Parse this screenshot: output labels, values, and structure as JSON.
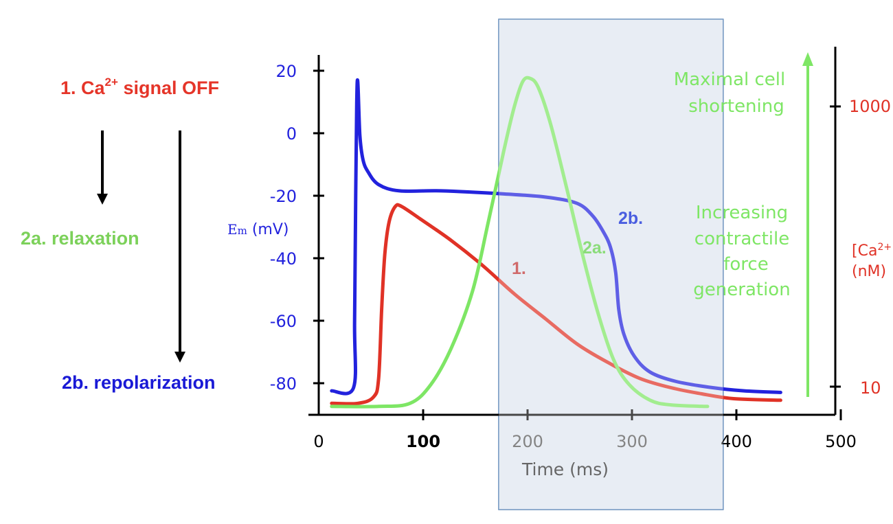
{
  "left_panel": {
    "ca_signal_prefix": "1. Ca",
    "ca_signal_sup": "2+",
    "ca_signal_suffix": " signal OFF",
    "relaxation": "2a. relaxation",
    "repolarization": "2b. repolarization"
  },
  "colors": {
    "membrane": "#2222dd",
    "calcium": "#e03226",
    "contraction": "#7ee665",
    "highlight_fill": "#a7b9d4",
    "highlight_stroke": "#5580b4",
    "axis": "#000000"
  },
  "chart_data": {
    "type": "line",
    "xlabel": "Time (ms)",
    "x_ticks": [
      "0",
      "100",
      "200",
      "300",
      "400",
      "500"
    ],
    "xlim": [
      0,
      500
    ],
    "left_axis": {
      "label_main": "E",
      "label_sub": "m",
      "label_units": " (mV)",
      "ticks": [
        "20",
        "0",
        "-20",
        "-40",
        "-60",
        "-80"
      ],
      "ylim": [
        -88,
        25
      ]
    },
    "right_axis": {
      "label_line1": "[Ca",
      "label_sup": "2+",
      "label_line1_end": "]",
      "label_line2": "(nM)",
      "ticks": [
        "1000",
        "10"
      ]
    },
    "highlight_window_ms": [
      175,
      390
    ],
    "series": [
      {
        "name": "membrane potential",
        "label": "2b.",
        "points_ms_mV": [
          [
            15,
            -82
          ],
          [
            36,
            -81
          ],
          [
            37,
            -60
          ],
          [
            38,
            -20
          ],
          [
            39,
            10
          ],
          [
            40,
            17
          ],
          [
            42,
            0
          ],
          [
            45,
            -8
          ],
          [
            50,
            -12
          ],
          [
            60,
            -16
          ],
          [
            80,
            -18
          ],
          [
            120,
            -18
          ],
          [
            180,
            -19
          ],
          [
            220,
            -20
          ],
          [
            250,
            -22
          ],
          [
            265,
            -26
          ],
          [
            275,
            -31
          ],
          [
            282,
            -36
          ],
          [
            287,
            -44
          ],
          [
            290,
            -56
          ],
          [
            295,
            -64
          ],
          [
            305,
            -71
          ],
          [
            320,
            -76
          ],
          [
            345,
            -79
          ],
          [
            380,
            -81
          ],
          [
            410,
            -82
          ],
          [
            445,
            -82.5
          ]
        ]
      },
      {
        "name": "calcium transient",
        "label": "1.",
        "points_ms_mV": [
          [
            15,
            -86
          ],
          [
            40,
            -86
          ],
          [
            55,
            -84
          ],
          [
            60,
            -78
          ],
          [
            63,
            -55
          ],
          [
            66,
            -38
          ],
          [
            70,
            -28
          ],
          [
            76,
            -23
          ],
          [
            82,
            -23
          ],
          [
            100,
            -27
          ],
          [
            130,
            -34
          ],
          [
            160,
            -42
          ],
          [
            190,
            -51
          ],
          [
            220,
            -59
          ],
          [
            250,
            -67
          ],
          [
            280,
            -73
          ],
          [
            310,
            -78
          ],
          [
            340,
            -81
          ],
          [
            370,
            -83
          ],
          [
            400,
            -84.5
          ],
          [
            445,
            -85
          ]
        ]
      },
      {
        "name": "contraction",
        "label": "2a.",
        "points_ms_mV": [
          [
            15,
            -87
          ],
          [
            60,
            -87
          ],
          [
            90,
            -86
          ],
          [
            110,
            -80
          ],
          [
            130,
            -68
          ],
          [
            150,
            -50
          ],
          [
            165,
            -28
          ],
          [
            180,
            -5
          ],
          [
            190,
            9
          ],
          [
            198,
            17
          ],
          [
            205,
            18
          ],
          [
            213,
            15
          ],
          [
            225,
            3
          ],
          [
            240,
            -17
          ],
          [
            255,
            -38
          ],
          [
            270,
            -57
          ],
          [
            285,
            -72
          ],
          [
            300,
            -80
          ],
          [
            320,
            -85
          ],
          [
            340,
            -86.5
          ],
          [
            375,
            -87
          ]
        ]
      }
    ],
    "annotations": {
      "top_line1": "Maximal cell",
      "top_line2": "shortening",
      "mid_line1": "Increasing",
      "mid_line2": "contractile",
      "mid_line3": "force",
      "mid_line4": "generation"
    }
  }
}
